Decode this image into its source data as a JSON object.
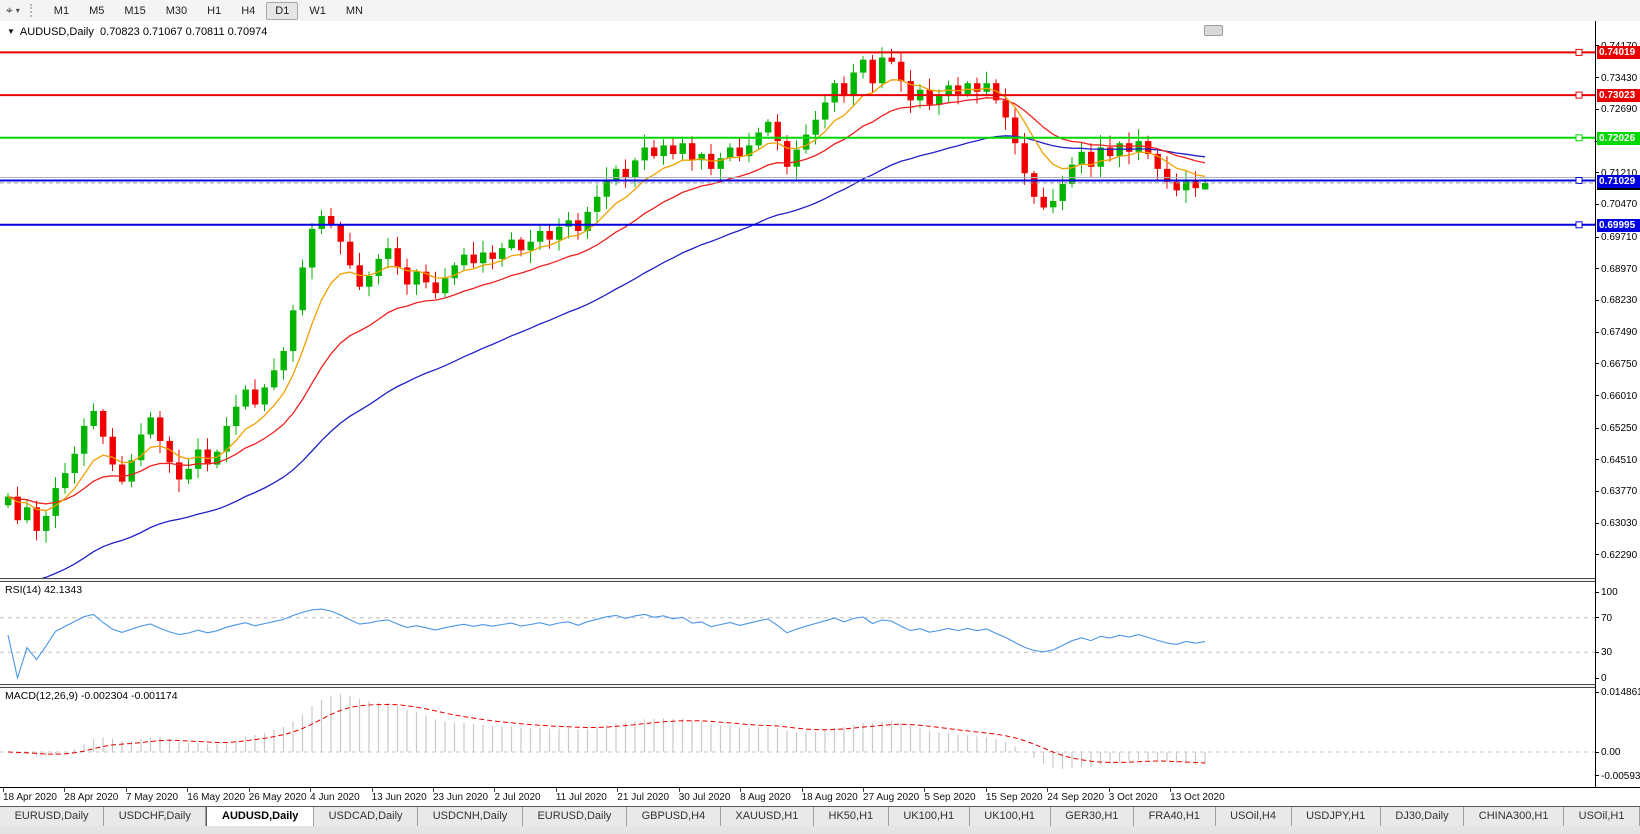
{
  "toolbar": {
    "cursor_tool": "crosshair",
    "timeframes": [
      "M1",
      "M5",
      "M15",
      "M30",
      "H1",
      "H4",
      "D1",
      "W1",
      "MN"
    ],
    "active_timeframe": "D1"
  },
  "chart": {
    "symbol": "AUDUSD,Daily",
    "ohlc": "0.70823 0.71067 0.70811 0.70974"
  },
  "chart_data": {
    "type": "candlestick",
    "symbol": "AUDUSD",
    "timeframe": "Daily",
    "title": "AUDUSD,Daily 0.70823 0.71067 0.70811 0.70974",
    "x_labels": [
      "18 Apr 2020",
      "28 Apr 2020",
      "7 May 2020",
      "16 May 2020",
      "26 May 2020",
      "4 Jun 2020",
      "13 Jun 2020",
      "23 Jun 2020",
      "2 Jul 2020",
      "11 Jul 2020",
      "21 Jul 2020",
      "30 Jul 2020",
      "8 Aug 2020",
      "18 Aug 2020",
      "27 Aug 2020",
      "5 Sep 2020",
      "15 Sep 2020",
      "24 Sep 2020",
      "3 Oct 2020",
      "13 Oct 2020"
    ],
    "y_axis_ticks": [
      0.7417,
      0.7343,
      0.7269,
      0.7195,
      0.7121,
      0.7047,
      0.6971,
      0.6897,
      0.6823,
      0.6749,
      0.6675,
      0.6601,
      0.6525,
      0.6451,
      0.6377,
      0.6303,
      0.6229
    ],
    "closes": [
      0.6365,
      0.631,
      0.634,
      0.6285,
      0.632,
      0.6385,
      0.642,
      0.6465,
      0.653,
      0.6565,
      0.6505,
      0.644,
      0.64,
      0.645,
      0.651,
      0.655,
      0.6495,
      0.6445,
      0.6405,
      0.643,
      0.6475,
      0.644,
      0.647,
      0.653,
      0.6575,
      0.6615,
      0.658,
      0.662,
      0.666,
      0.6705,
      0.68,
      0.69,
      0.699,
      0.702,
      0.7,
      0.696,
      0.6905,
      0.6855,
      0.688,
      0.692,
      0.6945,
      0.69,
      0.686,
      0.689,
      0.6865,
      0.684,
      0.6875,
      0.6905,
      0.693,
      0.691,
      0.6935,
      0.692,
      0.6945,
      0.6965,
      0.694,
      0.696,
      0.6985,
      0.6965,
      0.6995,
      0.701,
      0.6985,
      0.703,
      0.7065,
      0.7105,
      0.713,
      0.711,
      0.715,
      0.718,
      0.716,
      0.7185,
      0.7165,
      0.719,
      0.715,
      0.7165,
      0.713,
      0.7155,
      0.718,
      0.716,
      0.7185,
      0.7215,
      0.724,
      0.7195,
      0.7135,
      0.7175,
      0.721,
      0.7245,
      0.7285,
      0.733,
      0.73,
      0.7355,
      0.7385,
      0.733,
      0.739,
      0.738,
      0.7335,
      0.729,
      0.7315,
      0.728,
      0.73,
      0.7325,
      0.7305,
      0.733,
      0.731,
      0.733,
      0.729,
      0.725,
      0.719,
      0.712,
      0.7065,
      0.704,
      0.7055,
      0.7095,
      0.714,
      0.717,
      0.7135,
      0.718,
      0.716,
      0.719,
      0.717,
      0.7195,
      0.7165,
      0.713,
      0.71,
      0.708,
      0.7105,
      0.7085,
      0.70974
    ],
    "last_candle": {
      "open": 0.70823,
      "high": 0.71067,
      "low": 0.70811,
      "close": 0.70974
    },
    "peak_high": 0.7414,
    "colors": {
      "up": "#00b400",
      "down": "#f00000",
      "ma_fast": "#f0a000",
      "ma_medium": "#f02020",
      "ma_slow": "#2020c8"
    },
    "moving_averages": [
      {
        "name": "fast",
        "period": 8,
        "color": "#f0a000"
      },
      {
        "name": "medium",
        "period": 20,
        "color": "#f02020"
      },
      {
        "name": "slow",
        "period": 45,
        "color": "#2020c8",
        "seed": 0.615
      }
    ],
    "hlines": [
      {
        "price": 0.74019,
        "color": "#e80000",
        "label": "0.74019",
        "badge": true
      },
      {
        "price": 0.73023,
        "color": "#e80000",
        "label": "0.73023",
        "badge": true
      },
      {
        "price": 0.72026,
        "color": "#00d800",
        "label": "0.72026",
        "badge": true
      },
      {
        "price": 0.711,
        "color": "#b4b4b4",
        "label": "",
        "badge": false
      },
      {
        "price": 0.71029,
        "color": "#0000e0",
        "label": "0.71029",
        "badge": true
      },
      {
        "price": 0.69995,
        "color": "#0000e0",
        "label": "0.69995",
        "badge": true
      }
    ],
    "current_price": {
      "value": 0.70974,
      "label": "0.70974",
      "line_color": "#999999",
      "badge_color": "#000000"
    },
    "rsi": {
      "text": "RSI(14) 42.1343",
      "period": 14,
      "value": 42.1343,
      "axis_labels": [
        "100",
        "70",
        "30",
        "0"
      ],
      "levels": [
        100,
        70,
        30,
        0
      ],
      "upper_level": 70,
      "lower_level": 30,
      "line_color": "#4a96e8",
      "level_color": "#bdbdbd"
    },
    "macd": {
      "text": "MACD(12,26,9) -0.002304 -0.001174",
      "fast": 12,
      "slow": 26,
      "signal": 9,
      "macd_value": -0.002304,
      "signal_value": -0.001174,
      "axis_labels": [
        "0.014861",
        "0.00",
        "-0.005938"
      ],
      "axis_values": [
        0.014861,
        0.0,
        -0.005938
      ],
      "hist_color": "#c8c8c8",
      "signal_color": "#e80000",
      "zero_color": "#c4c4c4"
    }
  },
  "tabs": {
    "items": [
      "EURUSD,Daily",
      "USDCHF,Daily",
      "AUDUSD,Daily",
      "USDCAD,Daily",
      "USDCNH,Daily",
      "EURUSD,Daily",
      "GBPUSD,H4",
      "XAUUSD,H1",
      "HK50,H1",
      "UK100,H1",
      "UK100,H1",
      "GER30,H1",
      "FRA40,H1",
      "USOil,H4",
      "USDJPY,H1",
      "DJ30,Daily",
      "CHINA300,H1",
      "USOil,H1"
    ],
    "active_index": 2
  }
}
